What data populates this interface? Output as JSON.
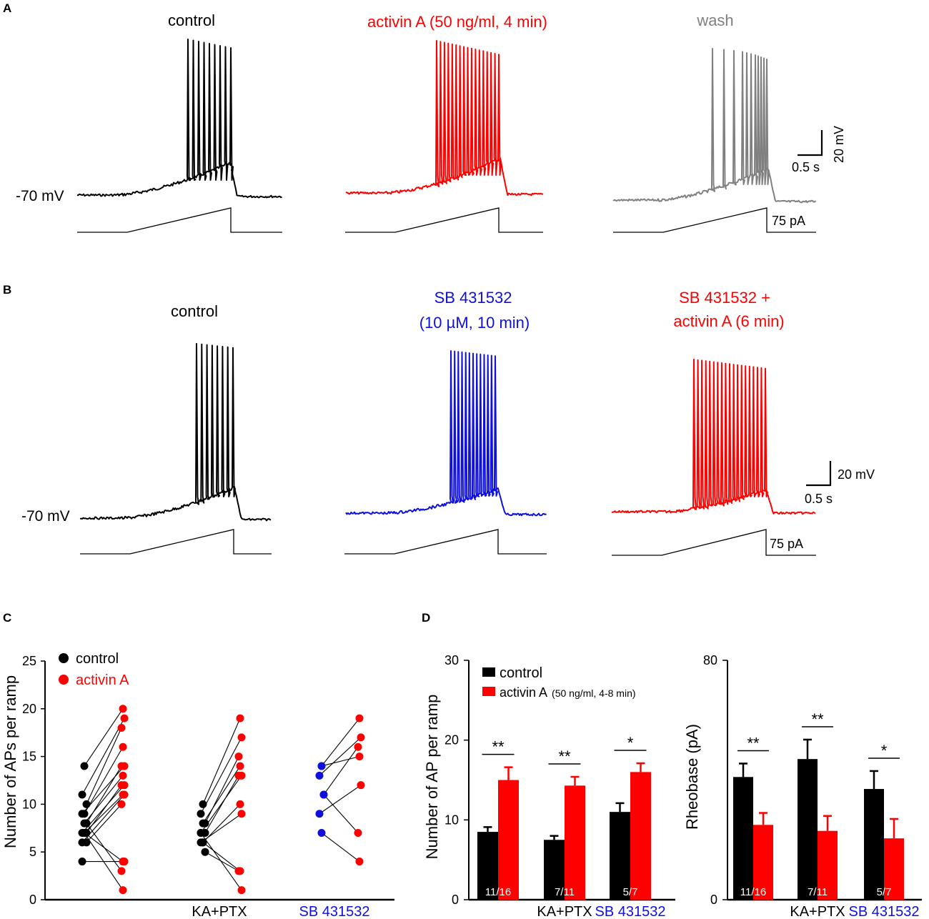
{
  "colors": {
    "control": "#000000",
    "activin": "#ff0000",
    "wash": "#808080",
    "sb": "#1010dd"
  },
  "panel_a": {
    "letter": "A",
    "titles": [
      "control",
      "activin A (50 ng/ml, 4 min)",
      "wash"
    ],
    "rest_label": "-70 mV",
    "scale_time": "0.5 s",
    "scale_voltage": "20 mV",
    "ramp_label": "75 pA"
  },
  "panel_b": {
    "letter": "B",
    "title_control": "control",
    "title_sb_1": "SB 431532",
    "title_sb_2": "(10 µM, 10 min)",
    "title_sba_1": "SB 431532 +",
    "title_sba_2": "activin A (6 min)",
    "rest_label": "-70 mV",
    "scale_time": "0.5 s",
    "scale_voltage": "20 mV",
    "ramp_label": "75 pA"
  },
  "panel_c": {
    "letter": "C",
    "legend": [
      "control",
      "activin A"
    ]
  },
  "panel_d": {
    "letter": "D",
    "legend_control": "control",
    "legend_activin": "activin A",
    "legend_activin_detail": "(50 ng/ml, 4-8 min)"
  },
  "chart_data": [
    {
      "id": "C",
      "type": "scatter",
      "title": "",
      "xlabel": "",
      "ylabel": "Number of APs per ramp",
      "ylim": [
        0,
        25
      ],
      "yticks": [
        0,
        5,
        10,
        15,
        20,
        25
      ],
      "categories": [
        "",
        "KA+PTX",
        "SB 431532"
      ],
      "series": [
        {
          "name": "control vs activin A",
          "pairs": [
            [
              14,
              20
            ],
            [
              11,
              19
            ],
            [
              10,
              18
            ],
            [
              9,
              16
            ],
            [
              9,
              14
            ],
            [
              8,
              14
            ],
            [
              8,
              13
            ],
            [
              7,
              12
            ],
            [
              7,
              12
            ],
            [
              7,
              11
            ],
            [
              6,
              11
            ],
            [
              6,
              10
            ],
            [
              7,
              4
            ],
            [
              4,
              4
            ],
            [
              8,
              3
            ],
            [
              7,
              1
            ]
          ]
        },
        {
          "name": "KA+PTX",
          "pairs": [
            [
              10,
              19
            ],
            [
              9,
              17
            ],
            [
              8,
              15
            ],
            [
              8,
              14
            ],
            [
              7,
              13
            ],
            [
              7,
              13
            ],
            [
              6,
              10
            ],
            [
              6,
              9
            ],
            [
              5,
              3
            ],
            [
              6,
              3
            ],
            [
              7,
              1
            ]
          ]
        },
        {
          "name": "SB 431532",
          "pairs": [
            [
              14,
              19
            ],
            [
              13,
              17
            ],
            [
              11,
              16
            ],
            [
              14,
              15
            ],
            [
              9,
              12
            ],
            [
              11,
              7
            ],
            [
              7,
              4
            ]
          ]
        }
      ]
    },
    {
      "id": "D1",
      "type": "bar",
      "title": "",
      "ylabel": "Number of AP per ramp",
      "ylim": [
        0,
        30
      ],
      "yticks": [
        0,
        10,
        20,
        30
      ],
      "categories": [
        "",
        "KA+PTX",
        "SB 431532"
      ],
      "series": [
        {
          "name": "control",
          "values": [
            8.5,
            7.5,
            11
          ],
          "errors": [
            0.6,
            0.5,
            1.1
          ]
        },
        {
          "name": "activin A",
          "values": [
            15,
            14.3,
            16
          ],
          "errors": [
            1.6,
            1.1,
            1.1
          ]
        }
      ],
      "n_labels": [
        "11/16",
        "7/11",
        "5/7"
      ],
      "significance": [
        "**",
        "**",
        "*"
      ]
    },
    {
      "id": "D2",
      "type": "bar",
      "title": "",
      "ylabel": "Rheobase (pA)",
      "ylim": [
        0,
        80
      ],
      "yticks": [
        0,
        80
      ],
      "categories": [
        "",
        "KA+PTX",
        "SB 431532"
      ],
      "series": [
        {
          "name": "control",
          "values": [
            41,
            47,
            37
          ],
          "errors": [
            4.5,
            6.5,
            6
          ]
        },
        {
          "name": "activin A",
          "values": [
            25,
            23,
            20.5
          ],
          "errors": [
            4,
            5,
            6.5
          ]
        }
      ],
      "n_labels": [
        "11/16",
        "7/11",
        "5/7"
      ],
      "significance": [
        "**",
        "**",
        "*"
      ]
    }
  ]
}
